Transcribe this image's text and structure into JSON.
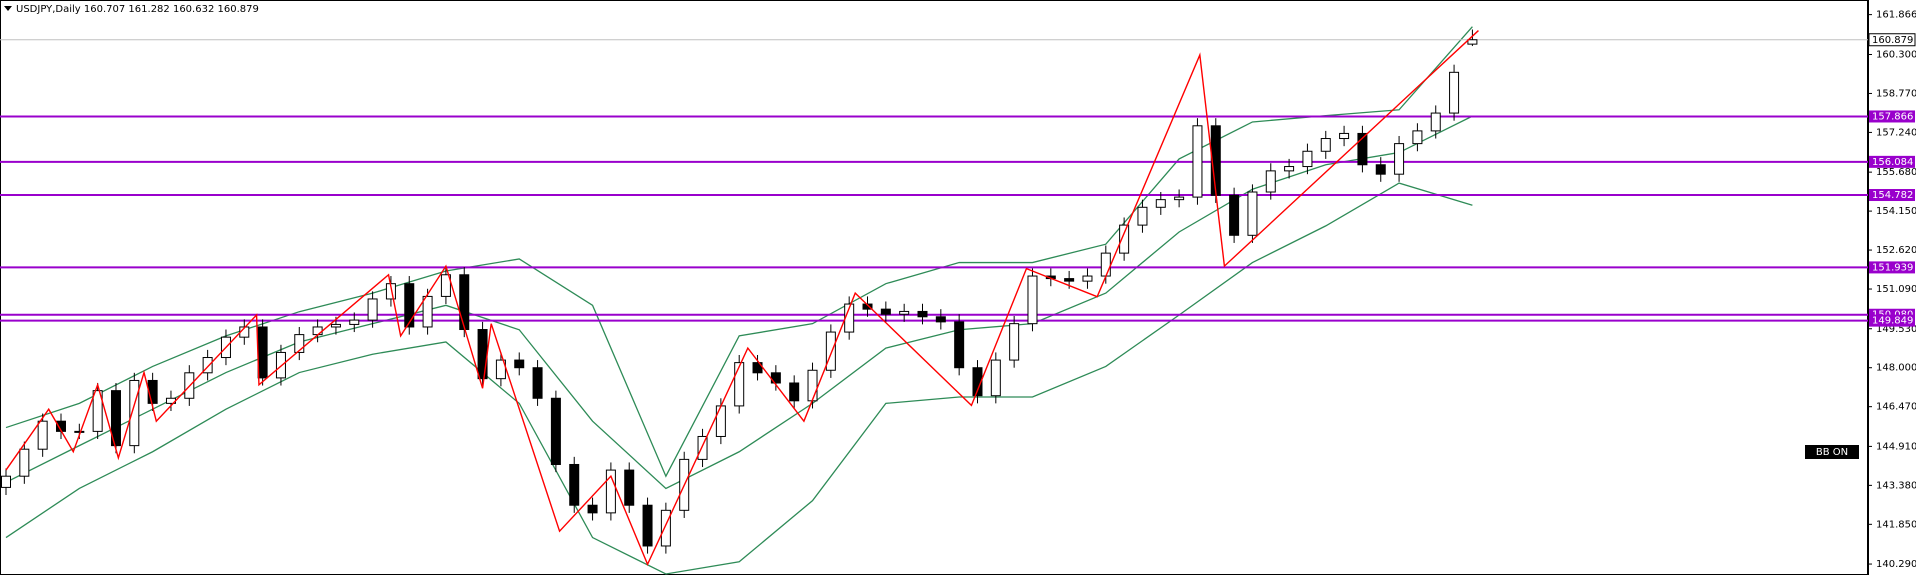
{
  "chart_data": {
    "type": "candlestick",
    "title": "USDJPY,Daily  160.707 161.282 160.632 160.879",
    "open": [
      143.3,
      143.74,
      144.8,
      145.9,
      145.5,
      145.5,
      147.1,
      144.94,
      147.5,
      146.6,
      146.8,
      147.8,
      148.4,
      149.2,
      149.6,
      147.6,
      148.6,
      149.3,
      149.6,
      149.7,
      149.87,
      150.7,
      151.3,
      149.6,
      150.8,
      151.65,
      149.5,
      147.57,
      148.3,
      148.0,
      146.8,
      144.2,
      142.6,
      142.3,
      143.98,
      142.6,
      141.0,
      142.4,
      144.4,
      145.3,
      146.5,
      148.2,
      147.8,
      147.4,
      146.7,
      147.9,
      149.4,
      150.5,
      150.3,
      150.1,
      150.21,
      150.0,
      149.8,
      148.0,
      146.9,
      148.3,
      149.73,
      151.6,
      151.5,
      151.4,
      151.6,
      152.5,
      153.6,
      154.3,
      154.6,
      154.7,
      157.5,
      154.77,
      153.2,
      154.9,
      155.73,
      155.9,
      156.5,
      157.0,
      157.2,
      155.97,
      155.6,
      156.8,
      157.3,
      158.0,
      160.707
    ],
    "high": [
      144.04,
      145.1,
      146.2,
      146.2,
      145.8,
      147.4,
      147.4,
      147.8,
      147.8,
      147.1,
      148.1,
      148.7,
      149.5,
      149.9,
      149.9,
      148.9,
      149.6,
      149.9,
      150.0,
      150.17,
      151.0,
      151.6,
      151.6,
      151.1,
      151.95,
      151.95,
      149.8,
      148.6,
      148.6,
      148.3,
      147.1,
      144.5,
      142.9,
      144.28,
      144.28,
      142.9,
      142.7,
      144.7,
      145.6,
      146.8,
      148.5,
      148.5,
      148.1,
      147.7,
      148.2,
      149.7,
      150.8,
      150.8,
      150.6,
      150.51,
      150.51,
      150.3,
      150.1,
      148.3,
      148.6,
      150.03,
      151.9,
      151.9,
      151.8,
      151.9,
      152.8,
      153.9,
      154.6,
      154.9,
      155.0,
      157.8,
      157.8,
      155.07,
      155.2,
      156.03,
      156.2,
      156.8,
      157.3,
      157.5,
      157.5,
      156.27,
      157.1,
      157.6,
      158.3,
      159.9,
      161.282
    ],
    "low": [
      143.0,
      143.44,
      144.5,
      145.2,
      145.2,
      145.2,
      144.64,
      144.64,
      146.3,
      146.3,
      146.5,
      147.5,
      148.1,
      148.9,
      147.3,
      147.3,
      148.3,
      149.0,
      149.3,
      149.4,
      149.57,
      150.4,
      149.3,
      149.3,
      150.5,
      149.2,
      147.27,
      147.27,
      147.7,
      146.5,
      143.9,
      142.3,
      142.0,
      142.0,
      142.3,
      140.7,
      140.7,
      142.1,
      144.1,
      145.0,
      146.2,
      147.5,
      147.1,
      146.4,
      146.4,
      147.6,
      149.1,
      150.0,
      149.8,
      149.8,
      149.7,
      149.5,
      147.7,
      146.6,
      146.6,
      148.0,
      149.43,
      151.2,
      151.1,
      151.1,
      151.3,
      152.2,
      153.3,
      154.0,
      154.3,
      154.4,
      154.47,
      152.9,
      152.9,
      154.6,
      155.43,
      155.6,
      156.2,
      156.7,
      155.67,
      155.3,
      155.3,
      156.5,
      157.0,
      157.7,
      160.632
    ],
    "close": [
      143.74,
      144.8,
      145.9,
      145.5,
      145.5,
      147.1,
      144.94,
      147.5,
      146.6,
      146.8,
      147.8,
      148.4,
      149.2,
      149.6,
      147.6,
      148.6,
      149.3,
      149.6,
      149.7,
      149.87,
      150.7,
      151.3,
      149.6,
      150.8,
      151.65,
      149.5,
      147.57,
      148.3,
      148.0,
      146.8,
      144.2,
      142.6,
      142.3,
      143.98,
      142.6,
      141.0,
      142.4,
      144.4,
      145.3,
      146.5,
      148.2,
      147.8,
      147.4,
      146.7,
      147.9,
      149.4,
      150.5,
      150.3,
      150.1,
      150.21,
      150.0,
      149.8,
      148.0,
      146.9,
      148.3,
      149.73,
      151.6,
      151.5,
      151.4,
      151.6,
      152.5,
      153.6,
      154.3,
      154.6,
      154.7,
      157.5,
      154.77,
      153.2,
      154.9,
      155.73,
      155.9,
      156.5,
      157.0,
      157.2,
      155.97,
      155.6,
      156.8,
      157.3,
      158.0,
      159.6,
      160.879
    ],
    "up_color": "#ffffff",
    "down_color": "#000000",
    "ylim": [
      139.86,
      162.44
    ],
    "yticks": [
      161.866,
      {
        "value": 160.3,
        "label": "160.300"
      },
      {
        "value": 158.77,
        "label": "158.770"
      },
      {
        "value": 157.24,
        "label": "157.240"
      },
      {
        "value": 155.68,
        "label": "155.680"
      },
      {
        "value": 154.15,
        "label": "154.150"
      },
      {
        "value": 152.62,
        "label": "152.620"
      },
      {
        "value": 151.09,
        "label": "151.090"
      },
      {
        "value": 149.53,
        "label": "149.530"
      },
      {
        "value": 148.0,
        "label": "148.000"
      },
      {
        "value": 146.47,
        "label": "146.470"
      },
      {
        "value": 144.91,
        "label": "144.910"
      },
      {
        "value": 143.38,
        "label": "143.380"
      },
      {
        "value": 141.85,
        "label": "141.850"
      },
      {
        "value": 140.29,
        "label": "140.290"
      }
    ],
    "bands": {
      "color": "#2e8b57",
      "x": [
        0,
        4,
        8,
        12,
        16,
        20,
        24,
        28,
        32,
        36,
        40,
        44,
        48,
        52,
        56,
        60,
        64,
        68,
        72,
        76,
        80
      ],
      "upper": [
        145.65,
        146.6,
        148.05,
        149.25,
        150.2,
        150.93,
        151.8,
        152.27,
        150.45,
        143.74,
        149.25,
        149.73,
        151.3,
        152.13,
        152.13,
        152.85,
        156.2,
        157.65,
        157.9,
        158.13,
        161.39
      ],
      "middle": [
        143.5,
        144.94,
        146.37,
        147.81,
        149.01,
        149.73,
        150.45,
        149.49,
        145.9,
        143.26,
        144.7,
        146.6,
        148.77,
        149.49,
        149.73,
        150.93,
        153.33,
        155.01,
        155.97,
        156.45,
        157.88
      ],
      "lower": [
        141.33,
        143.26,
        144.7,
        146.37,
        147.81,
        148.53,
        149.01,
        146.6,
        141.33,
        139.9,
        140.38,
        142.78,
        146.6,
        146.85,
        146.85,
        148.05,
        150.07,
        152.13,
        153.57,
        155.25,
        154.38
      ]
    },
    "zigzag": {
      "color": "#ff0000",
      "x": [
        0,
        2.33,
        3.67,
        5,
        6.13,
        7.53,
        8.2,
        13.67,
        13.8,
        20.87,
        21.53,
        24,
        26,
        26.47,
        30.2,
        33,
        35,
        40.47,
        43.53,
        46.33,
        52.67,
        55.67,
        59.53,
        65.13,
        66.47,
        80.33
      ],
      "values": [
        143.98,
        146.37,
        144.7,
        147.33,
        144.46,
        147.81,
        145.9,
        150.07,
        147.33,
        151.65,
        149.25,
        151.99,
        147.19,
        149.73,
        141.58,
        143.74,
        140.28,
        148.77,
        145.9,
        150.93,
        146.52,
        151.89,
        150.79,
        160.28,
        151.99,
        161.24
      ]
    },
    "levels": [
      157.866,
      156.084,
      154.782,
      151.939,
      {
        "value": 150.08,
        "label": "150.080"
      },
      149.849
    ],
    "level_color": "#9900cc",
    "current_price": 160.879,
    "badge": "BB ON"
  }
}
